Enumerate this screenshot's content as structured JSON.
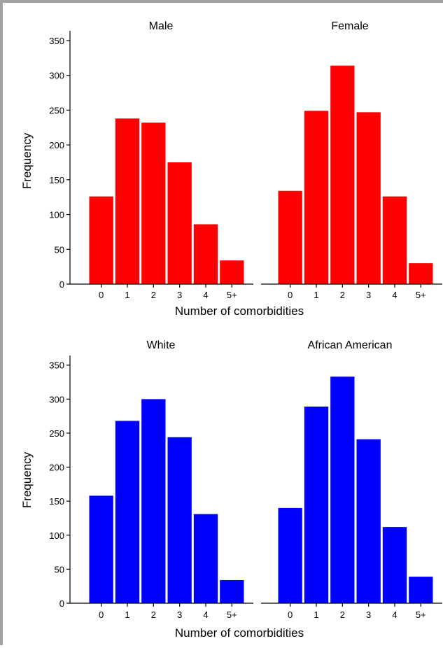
{
  "chart_data": [
    {
      "type": "bar",
      "title": "Male",
      "xlabel": "Number of comorbidities",
      "ylabel": "Frequency",
      "categories": [
        "0",
        "1",
        "2",
        "3",
        "4",
        "5+"
      ],
      "values": [
        126,
        238,
        232,
        175,
        86,
        34
      ],
      "ylim": [
        0,
        360
      ],
      "yticks": [
        "0",
        "50",
        "100",
        "150",
        "200",
        "250",
        "300",
        "350"
      ],
      "color": "#ff0000"
    },
    {
      "type": "bar",
      "title": "Female",
      "xlabel": "Number of comorbidities",
      "ylabel": "",
      "categories": [
        "0",
        "1",
        "2",
        "3",
        "4",
        "5+"
      ],
      "values": [
        134,
        249,
        314,
        247,
        126,
        30
      ],
      "ylim": [
        0,
        360
      ],
      "color": "#ff0000"
    },
    {
      "type": "bar",
      "title": "White",
      "xlabel": "Number of comorbidities",
      "ylabel": "Frequency",
      "categories": [
        "0",
        "1",
        "2",
        "3",
        "4",
        "5+"
      ],
      "values": [
        158,
        268,
        300,
        244,
        131,
        34
      ],
      "ylim": [
        0,
        360
      ],
      "yticks": [
        "0",
        "50",
        "100",
        "150",
        "200",
        "250",
        "300",
        "350"
      ],
      "color": "#0000ff"
    },
    {
      "type": "bar",
      "title": "African American",
      "xlabel": "Number of comorbidities",
      "ylabel": "",
      "categories": [
        "0",
        "1",
        "2",
        "3",
        "4",
        "5+"
      ],
      "values": [
        140,
        289,
        333,
        241,
        112,
        39
      ],
      "ylim": [
        0,
        360
      ],
      "color": "#0000ff"
    }
  ]
}
